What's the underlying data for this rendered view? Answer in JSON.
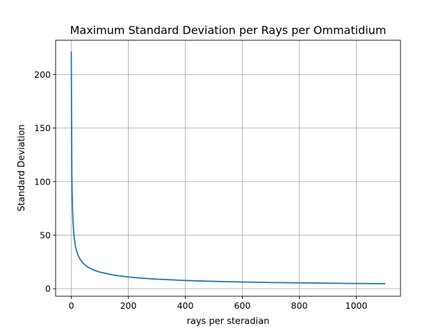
{
  "chart_data": {
    "type": "line",
    "title": "Maximum Standard Deviation per Rays per Ommatidium",
    "xlabel": "rays per steradian",
    "ylabel": "Standard Deviation",
    "xlim": [
      -55,
      1155
    ],
    "ylim": [
      -7,
      232
    ],
    "grid": true,
    "line_color": "#1f77b4",
    "xticks": [
      {
        "value": 0,
        "label": "0"
      },
      {
        "value": 200,
        "label": "200"
      },
      {
        "value": 400,
        "label": "400"
      },
      {
        "value": 600,
        "label": "600"
      },
      {
        "value": 800,
        "label": "800"
      },
      {
        "value": 1000,
        "label": "1000"
      }
    ],
    "yticks": [
      {
        "value": 0,
        "label": "0"
      },
      {
        "value": 50,
        "label": "50"
      },
      {
        "value": 100,
        "label": "100"
      },
      {
        "value": 150,
        "label": "150"
      },
      {
        "value": 200,
        "label": "200"
      }
    ],
    "series": [
      {
        "x": [
          0,
          0.5,
          1,
          2,
          3,
          4,
          5,
          6,
          8,
          10,
          12,
          15,
          20,
          25,
          30,
          40,
          50,
          60,
          80,
          100,
          150,
          200,
          250,
          300,
          400,
          500,
          600,
          700,
          800,
          900,
          1000,
          1100
        ],
        "y": [
          221,
          190,
          160,
          108,
          88,
          76,
          68,
          62,
          54,
          48,
          44,
          39,
          34,
          30.5,
          28,
          24.3,
          21.8,
          19.9,
          17.3,
          15.5,
          12.7,
          11.0,
          9.8,
          8.9,
          7.7,
          6.9,
          6.3,
          5.8,
          5.5,
          5.2,
          4.9,
          4.7
        ]
      }
    ]
  }
}
